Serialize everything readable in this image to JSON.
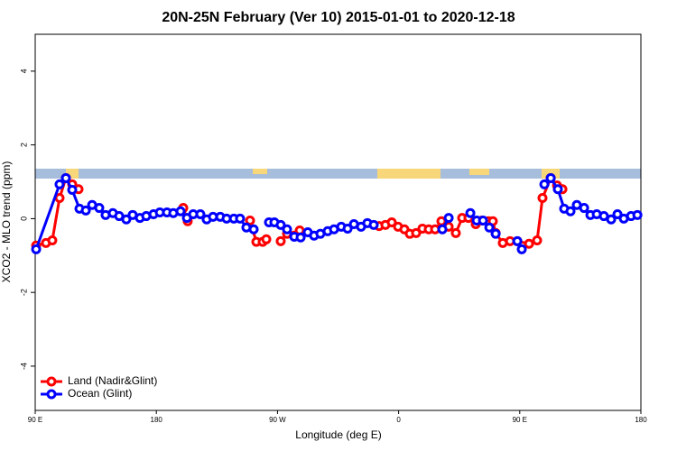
{
  "chart_data": {
    "type": "line",
    "title": "20N-25N February (Ver 10)   2015-01-01 to 2020-12-18",
    "x_label": "Longitude (deg E)",
    "y_label": "XCO2 - MLO trend (ppm)",
    "xlim": [
      90,
      540
    ],
    "xticks": [
      {
        "value": 90,
        "label": "90 E"
      },
      180,
      {
        "value": 270,
        "label": "90 W"
      },
      {
        "value": 360,
        "label": "0"
      },
      {
        "value": 450,
        "label": "90 E"
      },
      {
        "value": 540,
        "label": "180"
      }
    ],
    "ylim": [
      -5.2,
      5
    ],
    "yticks": [
      -4,
      -2,
      0,
      2,
      4
    ],
    "legend": "bottom-left",
    "series": [
      {
        "name": "Land (Nadir&Glint)",
        "color": "#ff0000",
        "x": [
          90.7,
          98,
          102.7,
          108.1,
          112.8,
          117.5,
          122.2,
          null,
          200,
          203.3,
          null,
          249.6,
          254.3,
          259,
          261.7,
          null,
          272.4,
          277.1,
          282.5,
          286.5,
          null,
          345.5,
          350.2,
          354.9,
          359.6,
          364.3,
          368.3,
          373,
          377.7,
          382.4,
          387.1,
          391.8,
          397.2,
          402.5,
          407.2,
          411.9,
          417.3,
          422,
          426.7,
          430,
          432.1,
          437.4,
          442.8,
          448.2,
          456.9,
          462.9,
          466.9,
          473,
          477.7,
          481.7
        ],
        "values": [
          -0.73,
          -0.66,
          -0.59,
          0.56,
          1.1,
          0.93,
          0.8,
          null,
          0.29,
          -0.07,
          null,
          -0.05,
          -0.63,
          -0.63,
          -0.56,
          null,
          -0.61,
          -0.41,
          -0.46,
          -0.32,
          null,
          -0.2,
          -0.17,
          -0.1,
          -0.22,
          -0.29,
          -0.41,
          -0.39,
          -0.27,
          -0.29,
          -0.29,
          -0.07,
          -0.22,
          -0.39,
          0.02,
          0.02,
          -0.15,
          -0.05,
          -0.07,
          -0.07,
          -0.39,
          -0.66,
          -0.61,
          -0.61,
          -0.68,
          -0.59,
          0.56,
          1.1,
          0.9,
          0.8
        ]
      },
      {
        "name": "Ocean (Glint)",
        "color": "#0000ff",
        "x": [
          90.7,
          108.1,
          112.8,
          117.5,
          122.9,
          127.6,
          132.3,
          137.6,
          142.3,
          147.7,
          152.4,
          157.7,
          162.4,
          167.8,
          172.5,
          177.9,
          182.6,
          187.9,
          192.6,
          198,
          202.7,
          207.4,
          212.7,
          217.4,
          222.1,
          227.5,
          232.2,
          237.6,
          242.2,
          246.9,
          252.3,
          null,
          263.7,
          267.7,
          272.4,
          277.1,
          282.5,
          287.2,
          292.5,
          297.2,
          301.9,
          307.3,
          312,
          317.4,
          322.1,
          326.8,
          332.1,
          336.8,
          341.5,
          null,
          392.5,
          397.2,
          null,
          413.3,
          418,
          422.7,
          427.4,
          432.1,
          null,
          448.2,
          451.5,
          null,
          468.3,
          473,
          478.3,
          483,
          487.7,
          492.4,
          497.8,
          502.5,
          507.2,
          512.5,
          517.9,
          522.6,
          527.3,
          532.7,
          537.4
        ],
        "values": [
          -0.83,
          0.93,
          1.1,
          0.78,
          0.27,
          0.22,
          0.37,
          0.29,
          0.1,
          0.15,
          0.07,
          -0.02,
          0.1,
          0.02,
          0.07,
          0.12,
          0.17,
          0.17,
          0.15,
          0.2,
          0.02,
          0.12,
          0.12,
          -0.02,
          0.05,
          0.05,
          0,
          0,
          0,
          -0.24,
          -0.29,
          null,
          -0.1,
          -0.1,
          -0.17,
          -0.29,
          -0.49,
          -0.51,
          -0.37,
          -0.46,
          -0.41,
          -0.34,
          -0.29,
          -0.22,
          -0.27,
          -0.15,
          -0.22,
          -0.12,
          -0.17,
          null,
          -0.29,
          0.02,
          null,
          0.15,
          -0.05,
          -0.05,
          -0.24,
          -0.41,
          null,
          -0.61,
          -0.83,
          null,
          0.93,
          1.1,
          0.8,
          0.27,
          0.2,
          0.37,
          0.29,
          0.1,
          0.12,
          0.07,
          -0.02,
          0.12,
          0,
          0.07,
          0.1
        ]
      }
    ]
  }
}
